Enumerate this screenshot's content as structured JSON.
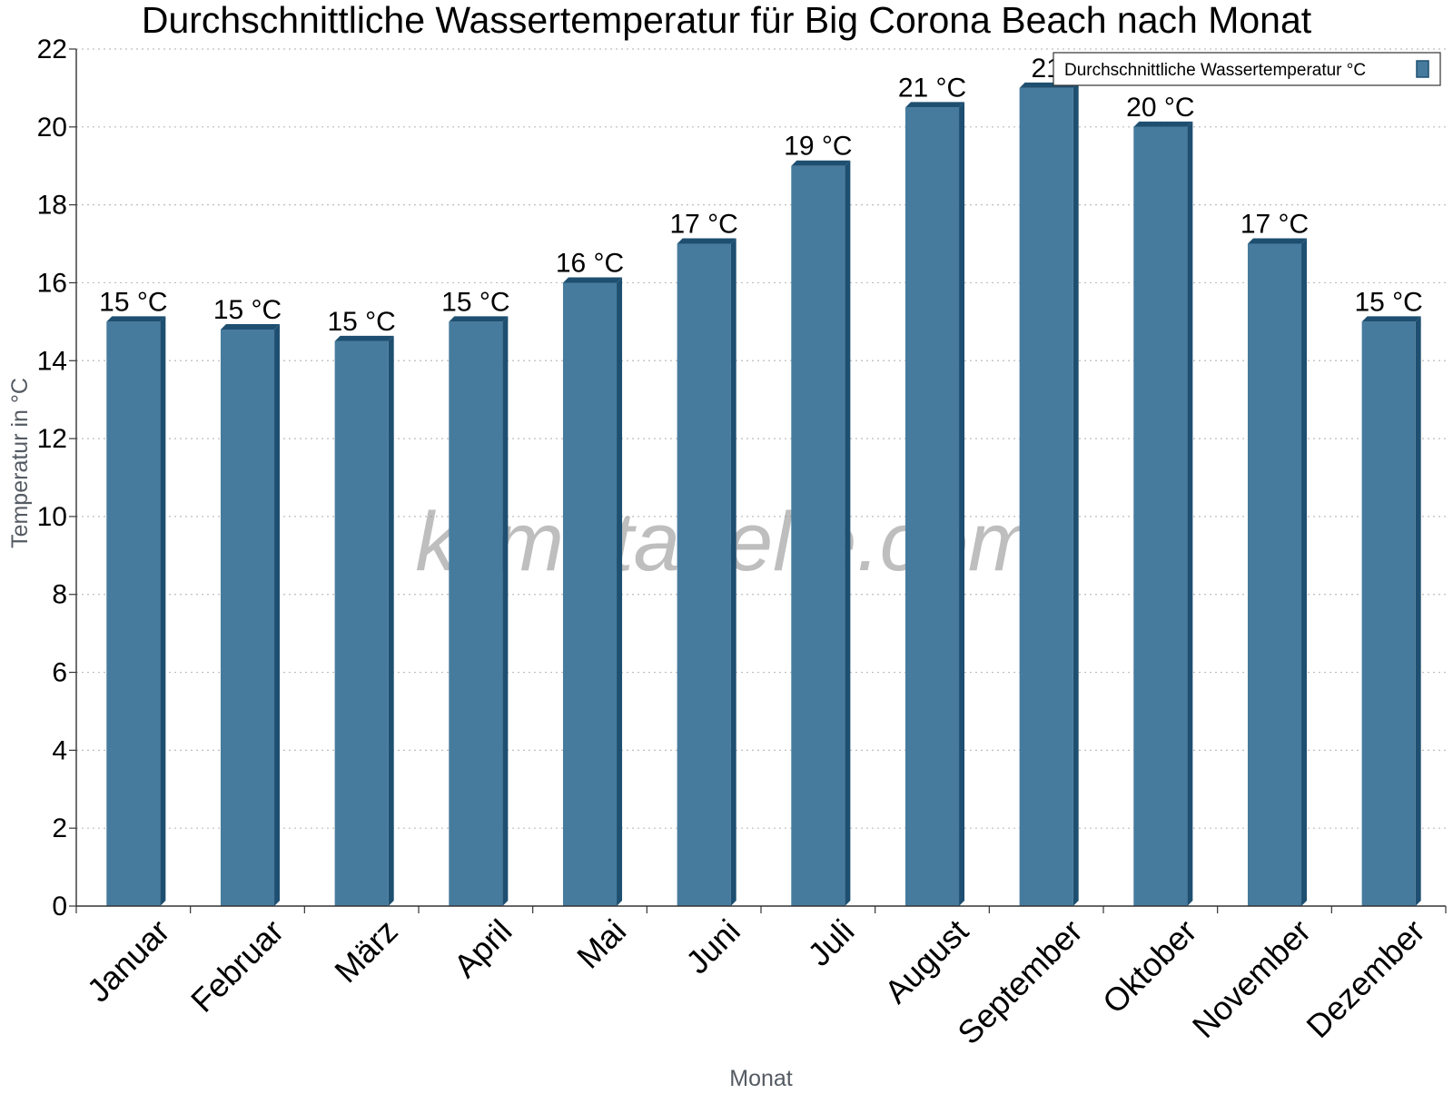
{
  "colors": {
    "bar": "#467b9e",
    "bar_side": "#1e4f70",
    "grid": "#bdbdbd",
    "axis": "#333333"
  },
  "watermark": "klimatabelle.com",
  "chart_data": {
    "type": "bar",
    "title": "Durchschnittliche Wassertemperatur für Big Corona Beach nach Monat",
    "xlabel": "Monat",
    "ylabel": "Temperatur in °C",
    "ylim": [
      0,
      22
    ],
    "yticks": [
      0,
      2,
      4,
      6,
      8,
      10,
      12,
      14,
      16,
      18,
      20,
      22
    ],
    "grid": "horizontal dotted",
    "legend_position": "top-right",
    "categories": [
      "Januar",
      "Februar",
      "März",
      "April",
      "Mai",
      "Juni",
      "Juli",
      "August",
      "September",
      "Oktober",
      "November",
      "Dezember"
    ],
    "series": [
      {
        "name": "Durchschnittliche Wassertemperatur °C",
        "values": [
          15,
          14.8,
          14.5,
          15,
          16,
          17,
          19,
          20.5,
          21,
          20,
          17,
          15
        ],
        "labels": [
          "15 °C",
          "15 °C",
          "15 °C",
          "15 °C",
          "16 °C",
          "17 °C",
          "19 °C",
          "21 °C",
          "21",
          "20 °C",
          "17 °C",
          "15 °C"
        ]
      }
    ]
  }
}
